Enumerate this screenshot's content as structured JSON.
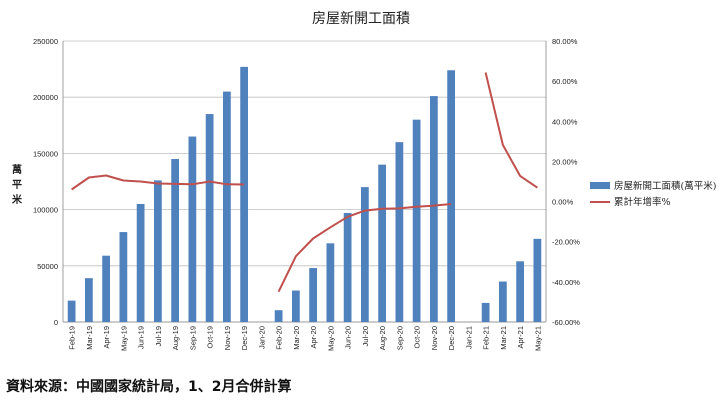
{
  "chart_data": {
    "type": "bar+line",
    "title": "房屋新開工面積",
    "ylabel": "萬平米",
    "ylim": [
      0,
      250000
    ],
    "y_ticks": [
      "0",
      "50000",
      "100000",
      "150000",
      "200000",
      "250000"
    ],
    "y2lim": [
      -60,
      80
    ],
    "y2_ticks": [
      "-60.00%",
      "-40.00%",
      "-20.00%",
      "0.00%",
      "20.00%",
      "40.00%",
      "60.00%",
      "80.00%"
    ],
    "categories": [
      "Feb-19",
      "Mar-19",
      "Apr-19",
      "May-19",
      "Jun-19",
      "Jul-19",
      "Aug-19",
      "Sep-19",
      "Oct-19",
      "Nov-19",
      "Dec-19",
      "Jan-20",
      "Feb-20",
      "Mar-20",
      "Apr-20",
      "May-20",
      "Jun-20",
      "Jul-20",
      "Aug-20",
      "Sep-20",
      "Oct-20",
      "Nov-20",
      "Dec-20",
      "Jan-21",
      "Feb-21",
      "Mar-21",
      "Apr-21",
      "May-21"
    ],
    "series": [
      {
        "name": "房屋新開工面積(萬平米)",
        "type": "bar",
        "axis": "left",
        "color": "#4f81bd",
        "values": [
          19000,
          39000,
          59000,
          80000,
          105000,
          126000,
          145000,
          165000,
          185000,
          205000,
          227000,
          null,
          10500,
          28000,
          48000,
          70000,
          97000,
          120000,
          140000,
          160000,
          180000,
          201000,
          224000,
          null,
          17000,
          36000,
          54000,
          74000
        ]
      },
      {
        "name": "累計年增率%",
        "type": "line",
        "axis": "right",
        "color": "#c0504d",
        "values": [
          6,
          12,
          13,
          10.5,
          10,
          9,
          8.8,
          8.6,
          10,
          8.6,
          8.5,
          null,
          -44.9,
          -27.2,
          -18.4,
          -12.8,
          -7.6,
          -4.5,
          -3.6,
          -3.4,
          -2.6,
          -2,
          -1.2,
          null,
          64.3,
          28.2,
          12.8,
          6.9
        ]
      }
    ],
    "legend_position": "right"
  },
  "footer": {
    "source": "資料來源：中國國家統計局，1、2月合併計算"
  }
}
